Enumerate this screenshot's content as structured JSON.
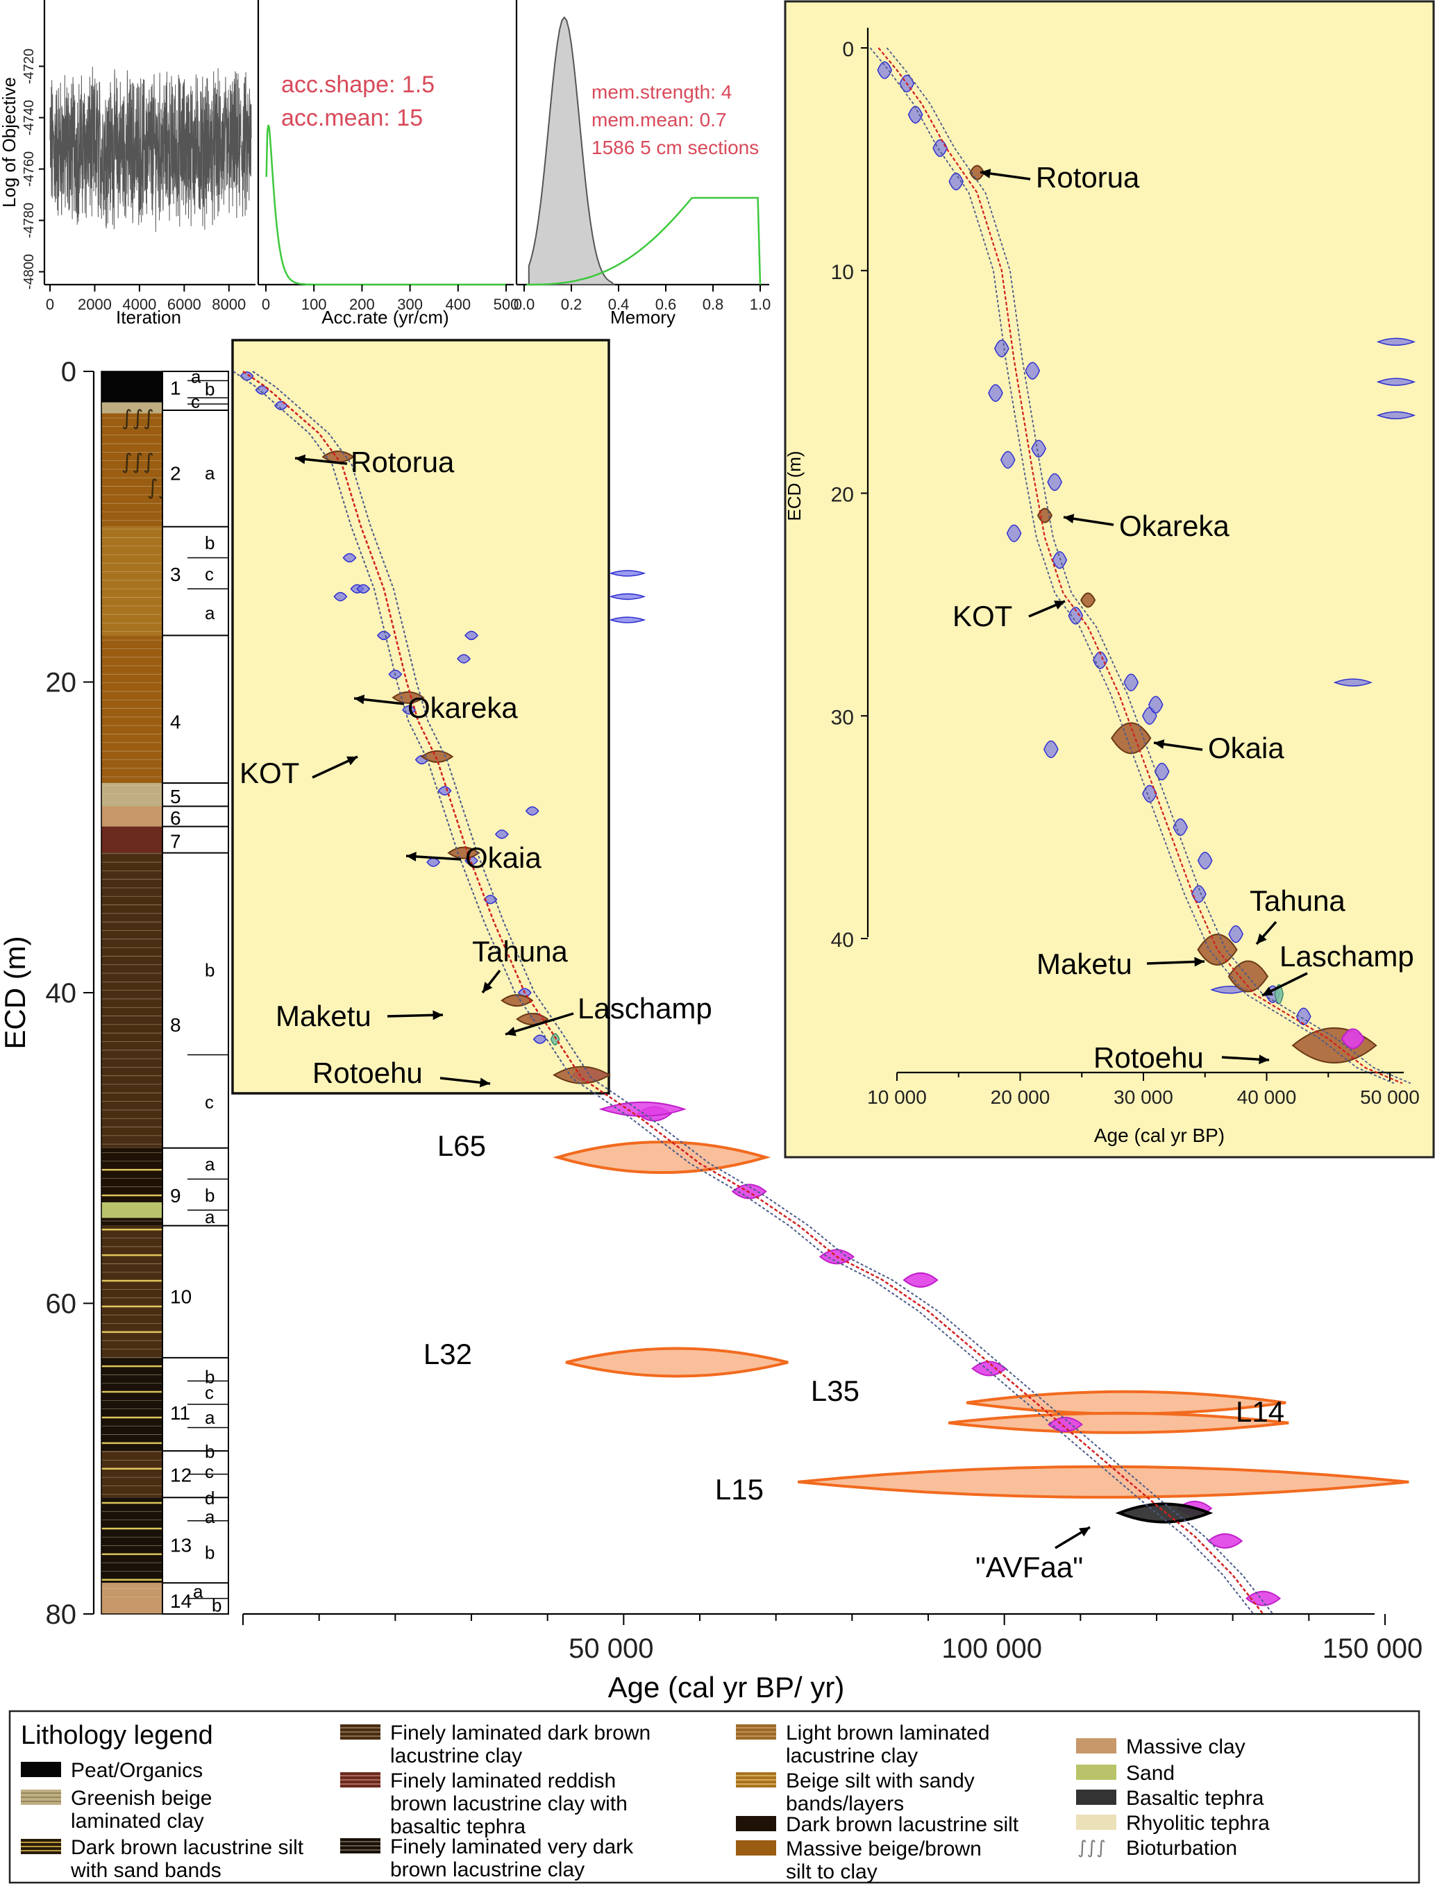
{
  "chart_data": [
    {
      "type": "line",
      "panel": "mcmc-iterations",
      "xlabel": "Iteration",
      "ylabel": "Log of Objective",
      "xticks": [
        "0",
        "2000",
        "4000",
        "6000",
        "8000"
      ],
      "yticks": [
        "-4720",
        "-4740",
        "-4760",
        "-4780",
        "-4800"
      ],
      "xlim": [
        0,
        9000
      ],
      "ylim": [
        -4805,
        -4705
      ],
      "grid": false
    },
    {
      "type": "area",
      "panel": "accumulation-prior-posterior",
      "xlabel": "Acc.rate (yr/cm)",
      "xticks": [
        "0",
        "100",
        "200",
        "300",
        "400",
        "500"
      ],
      "xlim": [
        0,
        500
      ],
      "annotations": [
        "acc.shape:  1.5",
        "acc.mean:  15"
      ]
    },
    {
      "type": "area",
      "panel": "memory-prior-posterior",
      "xlabel": "Memory",
      "xticks": [
        "0.0",
        "0.2",
        "0.4",
        "0.6",
        "0.8",
        "1.0"
      ],
      "xlim": [
        0,
        1
      ],
      "posterior_peak": 0.17,
      "annotations": [
        "mem.strength: 4",
        "mem.mean: 0.7",
        "1586 5 cm sections"
      ]
    },
    {
      "type": "line",
      "panel": "age-depth-main",
      "xlabel": "Age (cal yr BP/ yr)",
      "ylabel": "ECD (m)",
      "xticks": [
        "50 000",
        "100 000",
        "150 000"
      ],
      "yticks": [
        "0",
        "20",
        "40",
        "60",
        "80"
      ],
      "xlim": [
        0,
        155000
      ],
      "ylim": [
        80,
        0
      ],
      "series": [
        {
          "points": [
            [
              0,
              0
            ],
            [
              3000,
              1
            ],
            [
              10000,
              4
            ],
            [
              13000,
              6
            ],
            [
              15500,
              10
            ],
            [
              18500,
              14
            ],
            [
              21500,
              20
            ],
            [
              23000,
              22.5
            ],
            [
              25500,
              25
            ],
            [
              27500,
              28
            ],
            [
              29500,
              31
            ],
            [
              33000,
              35.5
            ],
            [
              37000,
              40
            ],
            [
              40500,
              42.5
            ],
            [
              44500,
              45.5
            ],
            [
              52000,
              48
            ],
            [
              60000,
              51
            ],
            [
              67000,
              53
            ],
            [
              73000,
              55
            ],
            [
              78000,
              57
            ],
            [
              84000,
              58.5
            ],
            [
              90000,
              60.5
            ],
            [
              96000,
              63
            ],
            [
              102000,
              65.5
            ],
            [
              108000,
              68
            ],
            [
              114000,
              70.5
            ],
            [
              120000,
              73
            ],
            [
              125000,
              75
            ],
            [
              130000,
              77.5
            ],
            [
              134000,
              80
            ]
          ]
        }
      ],
      "tephra_labels": [
        {
          "label": "Rotorua",
          "age": 13500,
          "depth": 5.6
        },
        {
          "label": "Okareka",
          "age": 21800,
          "depth": 21
        },
        {
          "label": "KOT",
          "age": 25500,
          "depth": 24.8
        },
        {
          "label": "Okaia",
          "age": 29000,
          "depth": 31
        },
        {
          "label": "Tahuna",
          "age": 38000,
          "depth": 41.7
        },
        {
          "label": "Maketu",
          "age": 36000,
          "depth": 40.5
        },
        {
          "label": "Laschamp",
          "age": 41000,
          "depth": 43.2
        },
        {
          "label": "Rotoehu",
          "age": 45000,
          "depth": 45.3
        }
      ],
      "luminescence_labels": [
        {
          "label": "L65",
          "age": 54000,
          "depth": 50.5
        },
        {
          "label": "L32",
          "age": 56000,
          "depth": 63.8
        },
        {
          "label": "L35",
          "age": 110000,
          "depth": 66.4
        },
        {
          "label": "L14",
          "age": 110000,
          "depth": 67.7
        },
        {
          "label": "L15",
          "age": 112000,
          "depth": 71.5
        }
      ],
      "other_labels": [
        {
          "label": "\"AVFaa\"",
          "age": 120000,
          "depth": 73.4
        }
      ]
    },
    {
      "type": "line",
      "panel": "age-depth-inset",
      "xlabel": "Age (cal yr BP)",
      "ylabel": "ECD (m)",
      "xticks": [
        "10 000",
        "20 000",
        "30 000",
        "40 000",
        "50 000"
      ],
      "yticks": [
        "0",
        "10",
        "20",
        "30",
        "40"
      ],
      "xlim": [
        8000,
        51000
      ],
      "ylim": [
        46.5,
        -1
      ],
      "series": [
        {
          "points": [
            [
              8500,
              0
            ],
            [
              10000,
              1
            ],
            [
              12000,
              2.5
            ],
            [
              14000,
              4.5
            ],
            [
              16500,
              6.5
            ],
            [
              18500,
              10
            ],
            [
              19500,
              14
            ],
            [
              21000,
              19
            ],
            [
              22000,
              22
            ],
            [
              23500,
              24.5
            ],
            [
              25500,
              26
            ],
            [
              28000,
              29
            ],
            [
              30000,
              32
            ],
            [
              32000,
              35
            ],
            [
              34000,
              38
            ],
            [
              36000,
              40.5
            ],
            [
              39000,
              42.5
            ],
            [
              42000,
              43.5
            ],
            [
              45000,
              44.5
            ],
            [
              48000,
              45.8
            ],
            [
              51000,
              46.5
            ]
          ]
        }
      ],
      "tephra_labels": [
        "Rotorua",
        "Okareka",
        "KOT",
        "Okaia",
        "Tahuna",
        "Maketu",
        "Laschamp",
        "Rotoehu"
      ]
    }
  ],
  "lithology": {
    "units": [
      "1",
      "2",
      "3",
      "4",
      "5",
      "6",
      "7",
      "8",
      "9",
      "10",
      "11",
      "12",
      "13",
      "14"
    ],
    "subunits": [
      "a",
      "b",
      "c",
      "a",
      "b",
      "c",
      "a",
      "b",
      "c",
      "a",
      "b",
      "a",
      "b",
      "c",
      "a",
      "b",
      "c",
      "d",
      "a",
      "b",
      "a",
      "b",
      "a",
      "b"
    ]
  },
  "legend": {
    "title": "Lithology legend",
    "items": [
      "Peat/Organics",
      "Greenish beige laminated clay",
      "Dark brown lacustrine silt with sand bands",
      "Finely laminated dark brown lacustrine clay",
      "Finely laminated reddish brown lacustrine clay with basaltic tephra",
      "Finely laminated very dark brown lacustrine clay",
      "Light brown laminated lacustrine clay",
      "Beige silt with sandy bands/layers",
      "Dark brown lacustrine silt",
      "Massive beige/brown silt to clay",
      "Massive clay",
      "Sand",
      "Basaltic tephra",
      "Rhyolitic tephra",
      "Bioturbation"
    ],
    "colors": {
      "peat": "#050505",
      "greenish": "#bfae82",
      "dkbrown_sand": "#2a1a08",
      "finely_dk": "#4a2e14",
      "reddish": "#6b2a1e",
      "very_dk": "#1a1208",
      "light_brown": "#9b6a2a",
      "beige_silt": "#a8731e",
      "dk_silt": "#1e1206",
      "massive_beige": "#9a5d12",
      "massive_clay": "#c7986a",
      "sand": "#b9c46a",
      "basaltic": "#333333",
      "rhyolitic": "#ece0b8"
    }
  },
  "colors": {
    "inset_bg": "#fdf4b8",
    "annotation": "#d84a5a",
    "tephra_fill": "#a8643a",
    "lum_fill": "#f8b48a",
    "lum_stroke": "#f26a1e",
    "magenta": "#e040e8",
    "blue": "#3a3ae0",
    "model_red": "#d02020"
  }
}
